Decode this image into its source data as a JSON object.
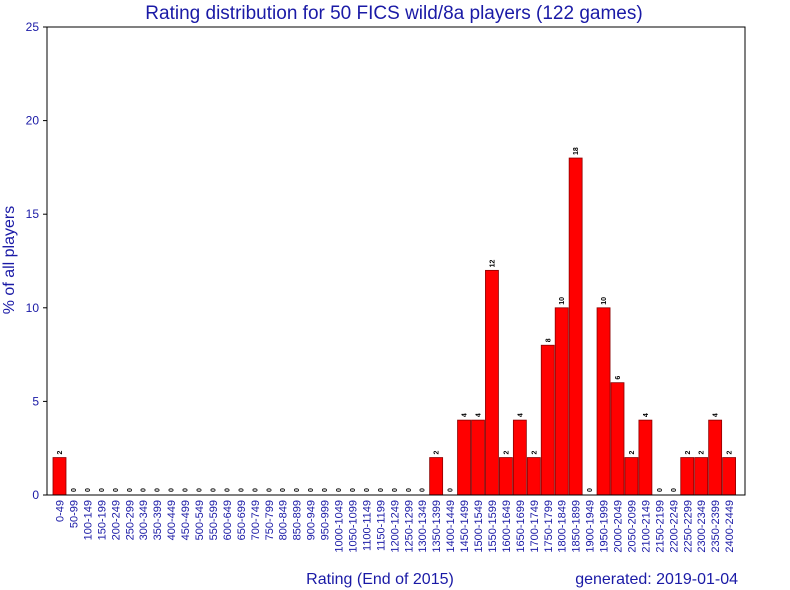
{
  "colors": {
    "bar": "#ff0000",
    "bar_stroke": "#8b0000",
    "text": "#1a1aa6",
    "axis": "#000000"
  },
  "footer": {
    "generated": "generated: 2019-01-04"
  },
  "chart_data": {
    "type": "bar",
    "title": "Rating distribution for 50 FICS wild/8a players (122 games)",
    "xlabel": "Rating (End of 2015)",
    "ylabel": "% of all players",
    "ylim": [
      0,
      25
    ],
    "yticks": [
      0,
      5,
      10,
      15,
      20,
      25
    ],
    "grid": false,
    "categories": [
      "0-49",
      "50-99",
      "100-149",
      "150-199",
      "200-249",
      "250-299",
      "300-349",
      "350-399",
      "400-449",
      "450-499",
      "500-549",
      "550-599",
      "600-649",
      "650-699",
      "700-749",
      "750-799",
      "800-849",
      "850-899",
      "900-949",
      "950-999",
      "1000-1049",
      "1050-1099",
      "1100-1149",
      "1150-1199",
      "1200-1249",
      "1250-1299",
      "1300-1349",
      "1350-1399",
      "1400-1449",
      "1450-1499",
      "1500-1549",
      "1550-1599",
      "1600-1649",
      "1650-1699",
      "1700-1749",
      "1750-1799",
      "1800-1849",
      "1850-1899",
      "1900-1949",
      "1950-1999",
      "2000-2049",
      "2050-2099",
      "2100-2149",
      "2150-2199",
      "2200-2249",
      "2250-2299",
      "2300-2349",
      "2350-2399",
      "2400-2449"
    ],
    "values": [
      2,
      0,
      0,
      0,
      0,
      0,
      0,
      0,
      0,
      0,
      0,
      0,
      0,
      0,
      0,
      0,
      0,
      0,
      0,
      0,
      0,
      0,
      0,
      0,
      0,
      0,
      0,
      2,
      0,
      4,
      4,
      12,
      2,
      4,
      2,
      8,
      10,
      18,
      0,
      10,
      6,
      2,
      4,
      0,
      0,
      2,
      2,
      4,
      2
    ],
    "data_labels": [
      "2",
      "0",
      "0",
      "0",
      "0",
      "0",
      "0",
      "0",
      "0",
      "0",
      "0",
      "0",
      "0",
      "0",
      "0",
      "0",
      "0",
      "0",
      "0",
      "0",
      "0",
      "0",
      "0",
      "0",
      "0",
      "0",
      "0",
      "2",
      "0",
      "4",
      "4",
      "12",
      "2",
      "4",
      "2",
      "8",
      "10",
      "18",
      "0",
      "10",
      "6",
      "2",
      "4",
      "0",
      "0",
      "2",
      "2",
      "4",
      "2"
    ]
  }
}
